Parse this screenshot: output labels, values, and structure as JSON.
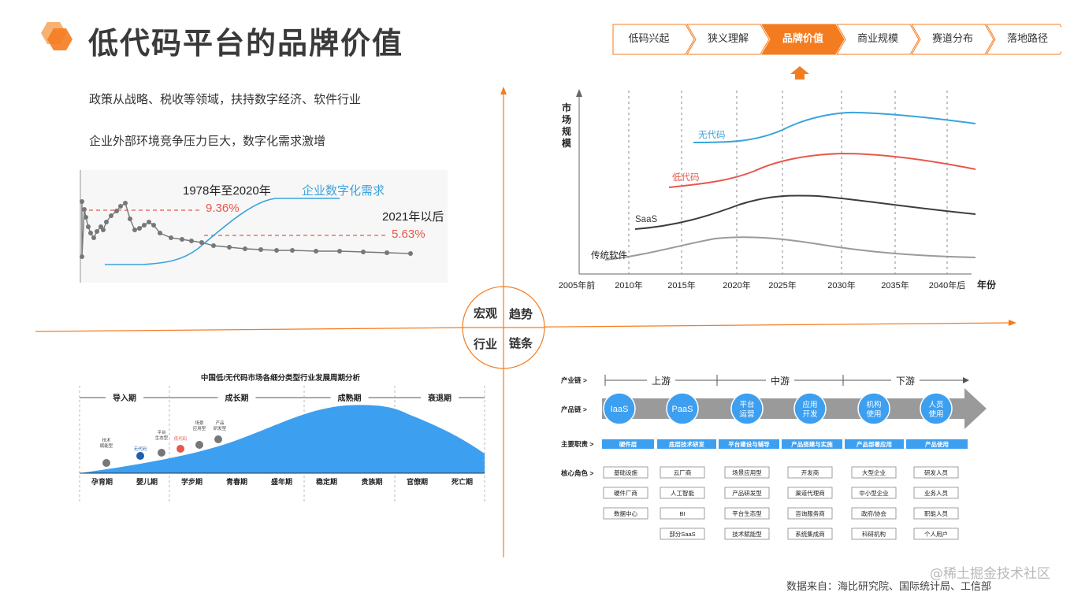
{
  "page": {
    "title": "低代码平台的品牌价值",
    "source": "数据来自：海比研究院、国际统计局、工信部",
    "watermark": "@稀土掘金技术社区",
    "accent": "#f47c20"
  },
  "nav": {
    "steps": [
      "低码兴起",
      "狭义理解",
      "品牌价值",
      "商业规模",
      "赛道分布",
      "落地路径"
    ],
    "active_index": 2
  },
  "intro": {
    "line1": "政策从战略、税收等领域，扶持数字经济、软件行业",
    "line2": "企业外部环境竞争压力巨大，数字化需求激增"
  },
  "center": {
    "q1": "宏观",
    "q2": "趋势",
    "q3": "行业",
    "q4": "链条"
  },
  "chart_macro": {
    "label_period": "1978年至2020年",
    "label_pct1": "9.36%",
    "label_demand": "企业数字化需求",
    "label_after": "2021年以后",
    "label_pct2": "5.63%"
  },
  "chart_trend": {
    "ylabel": "市场规模",
    "xlabel": "年份",
    "ticks": [
      "2005年前",
      "2010年",
      "2015年",
      "2020年",
      "2025年",
      "2030年",
      "2035年",
      "2040年后"
    ],
    "series": [
      {
        "name": "无代码",
        "color": "#3aa3dc"
      },
      {
        "name": "低代码",
        "color": "#e8574a"
      },
      {
        "name": "SaaS",
        "color": "#3c3c3c"
      },
      {
        "name": "传统软件",
        "color": "#9a9a9a"
      }
    ]
  },
  "chart_cycle": {
    "title": "中国低/无代码市场各细分类型行业发展周期分析",
    "phases": [
      "导入期",
      "成长期",
      "成熟期",
      "衰退期"
    ],
    "stages": [
      "孕育期",
      "婴儿期",
      "学步期",
      "青春期",
      "盛年期",
      "稳定期",
      "贵族期",
      "官僚期",
      "死亡期"
    ],
    "points": [
      {
        "name": "技术赋能型",
        "color": "#777777"
      },
      {
        "name": "无代码",
        "color": "#1f5fb0"
      },
      {
        "name": "平台生态型",
        "color": "#777777"
      },
      {
        "name": "低代码",
        "color": "#e8574a"
      },
      {
        "name": "场景应用型",
        "color": "#777777"
      },
      {
        "name": "产品研发型",
        "color": "#777777"
      }
    ]
  },
  "chain": {
    "row_industry": "产业链 >",
    "row_product": "产品链 >",
    "row_duty": "主要职责 >",
    "row_role": "核心角色 >",
    "segments": [
      "上游",
      "中游",
      "下游"
    ],
    "products": [
      "IaaS",
      "PaaS",
      "平台运营",
      "应用开发",
      "机构使用",
      "人员使用"
    ],
    "duties": [
      "硬件层",
      "底层技术研发",
      "平台建设与辅导",
      "产品搭建与实施",
      "产品部署应用",
      "产品使用"
    ],
    "roles": [
      [
        "基础设施",
        "硬件厂商",
        "数据中心"
      ],
      [
        "云厂商",
        "人工智能",
        "BI",
        "部分SaaS"
      ],
      [
        "场景应用型",
        "产品研发型",
        "平台生态型",
        "技术赋能型"
      ],
      [
        "开发商",
        "渠道代理商",
        "咨询服务商",
        "系统集成商"
      ],
      [
        "大型企业",
        "中小型企业",
        "政府/协会",
        "科研机构"
      ],
      [
        "研发人员",
        "业务人员",
        "职能人员",
        "个人用户"
      ]
    ]
  }
}
